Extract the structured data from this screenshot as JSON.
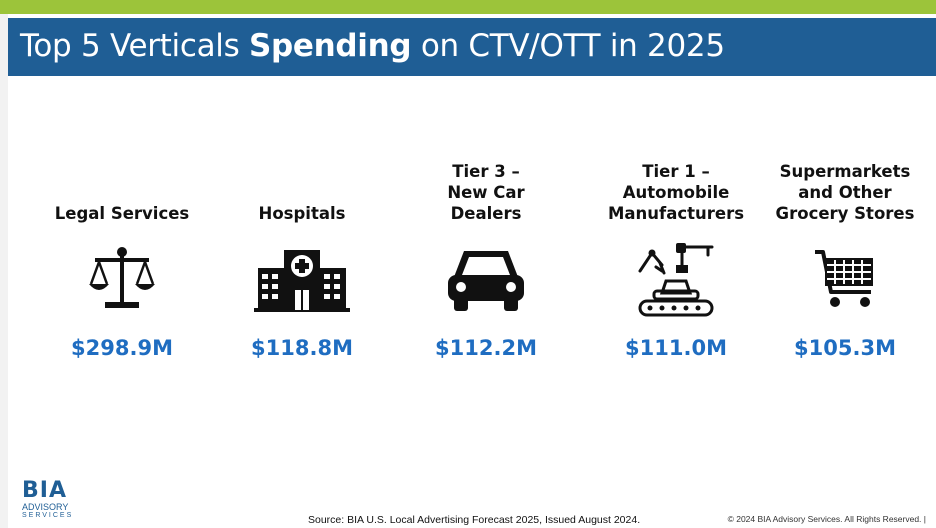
{
  "title": {
    "prefix": "Top 5 Verticals ",
    "bold": "Spending",
    "suffix": " on CTV/OTT in 2025"
  },
  "verticals": [
    {
      "label": "Legal Services",
      "value": "$298.9M",
      "icon": "scales-of-justice-icon"
    },
    {
      "label": "Hospitals",
      "value": "$118.8M",
      "icon": "hospital-icon"
    },
    {
      "label": "Tier 3 –\nNew Car\nDealers",
      "value": "$112.2M",
      "icon": "car-icon"
    },
    {
      "label": "Tier 1 –\nAutomobile\nManufacturers",
      "value": "$111.0M",
      "icon": "robotic-assembly-line-icon"
    },
    {
      "label": "Supermarkets\nand Other\nGrocery Stores",
      "value": "$105.3M",
      "icon": "shopping-cart-icon"
    }
  ],
  "logo": {
    "name": "BIA",
    "line1": "ADVISORY",
    "line2": "SERVICES"
  },
  "footer": {
    "source": "Source: BIA U.S. Local Advertising Forecast 2025, Issued August 2024.",
    "copyright": "© 2024 BIA Advisory Services. All Rights Reserved. |"
  },
  "colors": {
    "accent_green": "#9cc43a",
    "title_bar": "#1f5e95",
    "value_blue": "#1f6dc1"
  }
}
